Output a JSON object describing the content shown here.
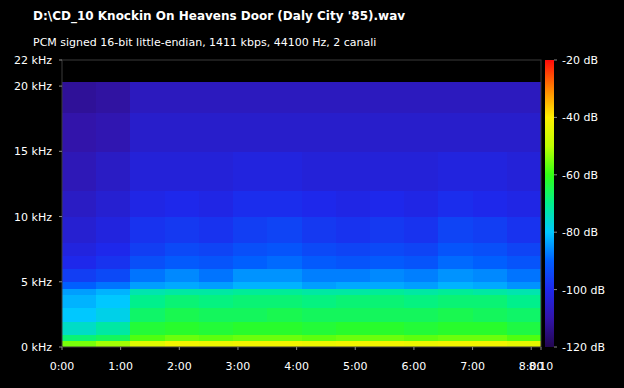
{
  "chart_data": {
    "type": "heatmap",
    "title": "D:\\CD_10 Knockin On Heavens Door (Daly City '85).wav",
    "subtitle": "PCM signed 16-bit little-endian, 1411 kbps, 44100 Hz, 2 canali",
    "xlim": [
      0,
      490
    ],
    "xticks": [
      {
        "value": 0,
        "label": "0:00"
      },
      {
        "value": 60,
        "label": "1:00"
      },
      {
        "value": 120,
        "label": "2:00"
      },
      {
        "value": 180,
        "label": "3:00"
      },
      {
        "value": 240,
        "label": "4:00"
      },
      {
        "value": 300,
        "label": "5:00"
      },
      {
        "value": 360,
        "label": "6:00"
      },
      {
        "value": 420,
        "label": "7:00"
      },
      {
        "value": 480,
        "label": "8:00"
      },
      {
        "value": 490,
        "label": "8:10"
      }
    ],
    "ylim": [
      0,
      22
    ],
    "yticks": [
      {
        "value": 0,
        "label": "0 kHz"
      },
      {
        "value": 5,
        "label": "5 kHz"
      },
      {
        "value": 10,
        "label": "10 kHz"
      },
      {
        "value": 15,
        "label": "15 kHz"
      },
      {
        "value": 20,
        "label": "20 kHz"
      },
      {
        "value": 22,
        "label": "22 kHz"
      }
    ],
    "grid": false,
    "x_bins": [
      0,
      35,
      70,
      105,
      140,
      175,
      210,
      245,
      280,
      315,
      350,
      385,
      420,
      455,
      490
    ],
    "y_bins": [
      0,
      0.5,
      1,
      2,
      3,
      4,
      4.5,
      5,
      6,
      7,
      8,
      10,
      12,
      15,
      18,
      20.3
    ],
    "cells": [
      [
        -55,
        -52,
        -45,
        -42,
        -43,
        -42,
        -42,
        -43,
        -42,
        -42,
        -43,
        -42,
        -42,
        -44
      ],
      [
        -68,
        -66,
        -58,
        -56,
        -57,
        -56,
        -56,
        -57,
        -56,
        -56,
        -57,
        -56,
        -56,
        -58
      ],
      [
        -75,
        -72,
        -63,
        -62,
        -63,
        -62,
        -62,
        -63,
        -62,
        -62,
        -63,
        -62,
        -62,
        -64
      ],
      [
        -80,
        -78,
        -67,
        -65,
        -66,
        -66,
        -65,
        -66,
        -66,
        -66,
        -66,
        -65,
        -66,
        -67
      ],
      [
        -82,
        -80,
        -70,
        -68,
        -69,
        -68,
        -68,
        -69,
        -68,
        -68,
        -69,
        -68,
        -68,
        -70
      ],
      [
        -84,
        -82,
        -73,
        -72,
        -72,
        -71,
        -71,
        -72,
        -72,
        -71,
        -72,
        -71,
        -72,
        -73
      ],
      [
        -90,
        -88,
        -84,
        -83,
        -84,
        -82,
        -82,
        -84,
        -83,
        -83,
        -84,
        -82,
        -83,
        -85
      ],
      [
        -96,
        -94,
        -88,
        -86,
        -88,
        -85,
        -85,
        -87,
        -87,
        -86,
        -87,
        -85,
        -86,
        -88
      ],
      [
        -100,
        -98,
        -93,
        -91,
        -92,
        -90,
        -89,
        -91,
        -92,
        -91,
        -92,
        -89,
        -90,
        -92
      ],
      [
        -102,
        -100,
        -96,
        -94,
        -95,
        -93,
        -92,
        -94,
        -95,
        -94,
        -95,
        -92,
        -93,
        -95
      ],
      [
        -104,
        -102,
        -98,
        -97,
        -98,
        -96,
        -95,
        -97,
        -98,
        -97,
        -98,
        -95,
        -96,
        -98
      ],
      [
        -106,
        -104,
        -101,
        -100,
        -101,
        -99,
        -99,
        -100,
        -101,
        -100,
        -101,
        -99,
        -100,
        -101
      ],
      [
        -108,
        -106,
        -103,
        -103,
        -103,
        -102,
        -102,
        -103,
        -103,
        -103,
        -103,
        -102,
        -102,
        -103
      ],
      [
        -110,
        -109,
        -105,
        -105,
        -105,
        -105,
        -105,
        -105,
        -105,
        -105,
        -105,
        -105,
        -105,
        -105
      ],
      [
        -112,
        -111,
        -107,
        -107,
        -107,
        -107,
        -107,
        -107,
        -107,
        -107,
        -107,
        -107,
        -107,
        -107
      ]
    ],
    "color_range": [
      -120,
      -20
    ],
    "color_ticks": [
      {
        "value": -20,
        "label": "-20 dB"
      },
      {
        "value": -40,
        "label": "-40 dB"
      },
      {
        "value": -60,
        "label": "-60 dB"
      },
      {
        "value": -80,
        "label": "-80 dB"
      },
      {
        "value": -100,
        "label": "-100 dB"
      },
      {
        "value": -120,
        "label": "-120 dB"
      }
    ]
  }
}
